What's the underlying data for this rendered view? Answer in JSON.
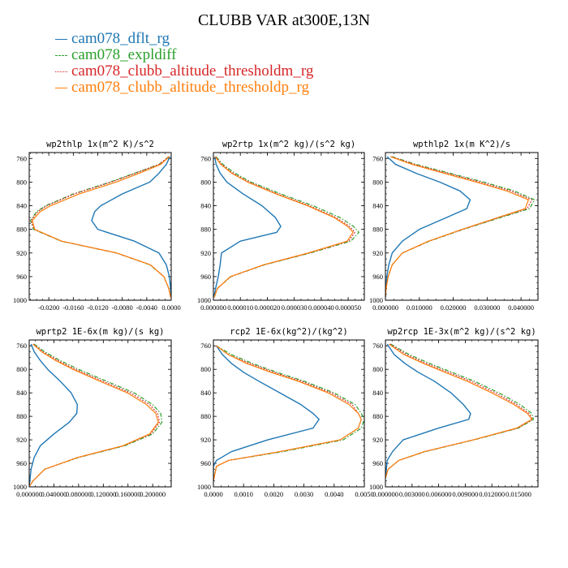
{
  "title": "CLUBB VAR at300E,13N",
  "legend": [
    {
      "label": "cam078_dflt_rg",
      "color": "#1f77b4",
      "dash": "solid"
    },
    {
      "label": "cam078_expldiff",
      "color": "#2ca02c",
      "dash": "dashdot"
    },
    {
      "label": "cam078_clubb_altitude_thresholdm_rg",
      "color": "#d62728",
      "dash": "dot"
    },
    {
      "label": "cam078_clubb_altitude_thresholdp_rg",
      "color": "#ff7f0e",
      "dash": "solid"
    }
  ],
  "chart_data": [
    {
      "type": "line",
      "title": "wp2thlp  1x(m^2 K)/s^2",
      "xlim": [
        -0.0232,
        0.0
      ],
      "ylim": [
        750,
        1000
      ],
      "xticks": [
        -0.02,
        -0.016,
        -0.012,
        -0.008,
        -0.004,
        0.0
      ],
      "xtick_labels": [
        "-0.0200",
        "-0.0160",
        "-0.0120",
        "-0.0080",
        "-0.0040",
        "0.0000"
      ],
      "yticks": [
        760,
        800,
        840,
        880,
        920,
        960,
        1000
      ],
      "ytick_labels": [
        "760",
        "800",
        "840",
        "880",
        "920",
        "960",
        "1000"
      ],
      "y": [
        757,
        770,
        785,
        800,
        820,
        840,
        850,
        865,
        880,
        900,
        920,
        940,
        960,
        980,
        995
      ],
      "series": [
        {
          "name": "cam078_dflt_rg",
          "values": [
            -0.0002,
            -0.0008,
            -0.002,
            -0.0035,
            -0.008,
            -0.0115,
            -0.0125,
            -0.013,
            -0.012,
            -0.006,
            -0.002,
            -0.0008,
            -0.0003,
            -0.0001,
            0.0
          ]
        },
        {
          "name": "cam078_expldiff",
          "values": [
            -0.0004,
            -0.002,
            -0.006,
            -0.01,
            -0.016,
            -0.0205,
            -0.022,
            -0.023,
            -0.0225,
            -0.018,
            -0.009,
            -0.0035,
            -0.0012,
            -0.0004,
            -0.0001
          ]
        },
        {
          "name": "cam078_clubb_altitude_thresholdm_rg",
          "values": [
            -0.0004,
            -0.002,
            -0.0058,
            -0.0098,
            -0.0158,
            -0.0203,
            -0.0218,
            -0.0229,
            -0.0224,
            -0.0179,
            -0.0089,
            -0.0034,
            -0.0012,
            -0.0004,
            -0.0001
          ]
        },
        {
          "name": "cam078_clubb_altitude_thresholdp_rg",
          "values": [
            -0.0003,
            -0.0017,
            -0.0052,
            -0.009,
            -0.015,
            -0.0197,
            -0.0214,
            -0.0227,
            -0.0223,
            -0.0179,
            -0.0089,
            -0.0034,
            -0.0012,
            -0.0004,
            -0.0001
          ]
        }
      ]
    },
    {
      "type": "line",
      "title": "wp2rtp  1x(m^2 kg)/(s^2 kg)",
      "xlim": [
        0.0,
        5.6e-05
      ],
      "ylim": [
        750,
        1000
      ],
      "xticks": [
        0.0,
        1e-05,
        2e-05,
        3e-05,
        4e-05,
        5e-05
      ],
      "xtick_labels": [
        "0.000000",
        "0.000010",
        "0.000020",
        "0.000030",
        "0.000040",
        "0.000050"
      ],
      "yticks": [
        760,
        800,
        840,
        880,
        920,
        960,
        1000
      ],
      "ytick_labels": [
        "760",
        "800",
        "840",
        "880",
        "920",
        "960",
        "1000"
      ],
      "y": [
        757,
        770,
        785,
        800,
        820,
        840,
        860,
        875,
        885,
        900,
        920,
        940,
        960,
        980,
        995
      ],
      "series": [
        {
          "name": "cam078_dflt_rg",
          "values": [
            5e-07,
            1e-06,
            2.5e-06,
            5e-06,
            1.1e-05,
            1.8e-05,
            2.3e-05,
            2.5e-05,
            2.35e-05,
            1e-05,
            3e-06,
            2.5e-06,
            1.8e-06,
            8e-07,
            2e-07
          ]
        },
        {
          "name": "cam078_expldiff",
          "values": [
            1e-06,
            3.5e-06,
            8e-06,
            1.4e-05,
            2.5e-05,
            3.7e-05,
            4.7e-05,
            5.2e-05,
            5.4e-05,
            5.1e-05,
            3.6e-05,
            1.9e-05,
            6.5e-06,
            1.5e-06,
            3e-07
          ]
        },
        {
          "name": "cam078_clubb_altitude_thresholdm_rg",
          "values": [
            8e-07,
            3e-06,
            7.2e-06,
            1.32e-05,
            2.38e-05,
            3.56e-05,
            4.55e-05,
            5.05e-05,
            5.25e-05,
            5.02e-05,
            3.55e-05,
            1.88e-05,
            6.4e-06,
            1.5e-06,
            3e-07
          ]
        },
        {
          "name": "cam078_clubb_altitude_thresholdp_rg",
          "values": [
            7e-07,
            2.7e-06,
            6.8e-06,
            1.27e-05,
            2.32e-05,
            3.49e-05,
            4.48e-05,
            4.98e-05,
            5.18e-05,
            4.96e-05,
            3.52e-05,
            1.86e-05,
            6.3e-06,
            1.5e-06,
            3e-07
          ]
        }
      ]
    },
    {
      "type": "line",
      "title": "wpthlp2  1x(m K^2)/s",
      "xlim": [
        0.0,
        0.045
      ],
      "ylim": [
        750,
        1000
      ],
      "xticks": [
        0.0,
        0.01,
        0.02,
        0.03,
        0.04
      ],
      "xtick_labels": [
        "0.000000",
        "0.010000",
        "0.020000",
        "0.030000",
        "0.040000"
      ],
      "yticks": [
        760,
        800,
        840,
        880,
        920,
        960,
        1000
      ],
      "ytick_labels": [
        "760",
        "800",
        "840",
        "880",
        "920",
        "960",
        "1000"
      ],
      "y": [
        757,
        770,
        785,
        800,
        815,
        830,
        845,
        860,
        880,
        900,
        920,
        940,
        960,
        980,
        995
      ],
      "series": [
        {
          "name": "cam078_dflt_rg",
          "values": [
            0.0005,
            0.003,
            0.009,
            0.016,
            0.022,
            0.025,
            0.024,
            0.018,
            0.01,
            0.005,
            0.002,
            0.001,
            0.0004,
            0.0001,
            0.0
          ]
        },
        {
          "name": "cam078_expldiff",
          "values": [
            0.002,
            0.009,
            0.019,
            0.029,
            0.038,
            0.044,
            0.0425,
            0.034,
            0.023,
            0.013,
            0.005,
            0.002,
            0.0008,
            0.0002,
            0.0
          ]
        },
        {
          "name": "cam078_clubb_altitude_thresholdm_rg",
          "values": [
            0.0018,
            0.0085,
            0.0182,
            0.028,
            0.037,
            0.0432,
            0.0418,
            0.0335,
            0.0228,
            0.0128,
            0.005,
            0.002,
            0.0008,
            0.0002,
            0.0
          ]
        },
        {
          "name": "cam078_clubb_altitude_thresholdp_rg",
          "values": [
            0.0015,
            0.0078,
            0.0172,
            0.0268,
            0.0358,
            0.0422,
            0.0412,
            0.0332,
            0.0226,
            0.0127,
            0.005,
            0.002,
            0.0008,
            0.0002,
            0.0
          ]
        }
      ]
    },
    {
      "type": "line",
      "title": "wprtp2  1E-6x(m kg)/(s kg)",
      "xlim": [
        0.0,
        0.23
      ],
      "ylim": [
        750,
        1000
      ],
      "xticks": [
        0.0,
        0.04,
        0.08,
        0.12,
        0.16,
        0.2
      ],
      "xtick_labels": [
        "0.000000",
        "0.040000",
        "0.080000",
        "0.120000",
        "0.160000",
        "0.200000"
      ],
      "yticks": [
        760,
        800,
        840,
        880,
        920,
        960,
        1000
      ],
      "ytick_labels": [
        "760",
        "800",
        "840",
        "880",
        "920",
        "960",
        "1000"
      ],
      "y": [
        757,
        770,
        785,
        800,
        820,
        840,
        860,
        875,
        890,
        910,
        930,
        950,
        970,
        990,
        998
      ],
      "series": [
        {
          "name": "cam078_dflt_rg",
          "values": [
            0.003,
            0.008,
            0.018,
            0.03,
            0.05,
            0.068,
            0.078,
            0.077,
            0.065,
            0.04,
            0.018,
            0.008,
            0.003,
            0.001,
            0.0
          ]
        },
        {
          "name": "cam078_expldiff",
          "values": [
            0.008,
            0.025,
            0.05,
            0.08,
            0.125,
            0.17,
            0.2,
            0.213,
            0.215,
            0.2,
            0.155,
            0.08,
            0.025,
            0.006,
            0.001
          ]
        },
        {
          "name": "cam078_clubb_altitude_thresholdm_rg",
          "values": [
            0.007,
            0.022,
            0.046,
            0.075,
            0.119,
            0.164,
            0.195,
            0.208,
            0.211,
            0.197,
            0.153,
            0.079,
            0.025,
            0.006,
            0.001
          ]
        },
        {
          "name": "cam078_clubb_altitude_thresholdp_rg",
          "values": [
            0.006,
            0.02,
            0.043,
            0.071,
            0.114,
            0.159,
            0.19,
            0.205,
            0.209,
            0.195,
            0.152,
            0.078,
            0.025,
            0.006,
            0.001
          ]
        }
      ]
    },
    {
      "type": "line",
      "title": "rcp2  1E-6x(kg^2)/(kg^2)",
      "xlim": [
        0.0,
        0.005
      ],
      "ylim": [
        750,
        1000
      ],
      "xticks": [
        0.0,
        0.001,
        0.002,
        0.003,
        0.004,
        0.005
      ],
      "xtick_labels": [
        "0.0000",
        "0.0010",
        "0.0020",
        "0.0030",
        "0.0040",
        "0.0050"
      ],
      "yticks": [
        760,
        800,
        840,
        880,
        920,
        960,
        1000
      ],
      "ytick_labels": [
        "760",
        "800",
        "840",
        "880",
        "920",
        "960",
        "1000"
      ],
      "y": [
        760,
        775,
        790,
        805,
        820,
        840,
        860,
        875,
        885,
        900,
        920,
        940,
        955,
        965,
        990
      ],
      "series": [
        {
          "name": "cam078_dflt_rg",
          "values": [
            0.0001,
            0.0003,
            0.0006,
            0.001,
            0.0015,
            0.0022,
            0.0029,
            0.0033,
            0.0035,
            0.0033,
            0.0018,
            0.0006,
            0.0001,
            0.0,
            0.0
          ]
        },
        {
          "name": "cam078_expldiff",
          "values": [
            0.0001,
            0.0006,
            0.0013,
            0.0021,
            0.003,
            0.004,
            0.0047,
            0.0049,
            0.005,
            0.0049,
            0.0043,
            0.0023,
            0.0005,
            0.0001,
            0.0
          ]
        },
        {
          "name": "cam078_clubb_altitude_thresholdm_rg",
          "values": [
            0.0001,
            0.0005,
            0.0012,
            0.002,
            0.0029,
            0.0039,
            0.0046,
            0.0048,
            0.0049,
            0.0048,
            0.0042,
            0.0022,
            0.0005,
            0.0001,
            0.0
          ]
        },
        {
          "name": "cam078_clubb_altitude_thresholdp_rg",
          "values": [
            0.0001,
            0.0005,
            0.0011,
            0.0019,
            0.0028,
            0.0038,
            0.0045,
            0.0048,
            0.0049,
            0.0048,
            0.0042,
            0.0022,
            0.0005,
            0.0001,
            0.0
          ]
        }
      ]
    },
    {
      "type": "line",
      "title": "wp2rcp  1E-3x(m^2 kg)/(s^2 kg)",
      "xlim": [
        0.0,
        0.0172
      ],
      "ylim": [
        750,
        1000
      ],
      "xticks": [
        0.0,
        0.003,
        0.006,
        0.009,
        0.012,
        0.015
      ],
      "xtick_labels": [
        "0.000000",
        "0.003000",
        "0.006000",
        "0.009000",
        "0.012000",
        "0.015000"
      ],
      "yticks": [
        760,
        800,
        840,
        880,
        920,
        960,
        1000
      ],
      "ytick_labels": [
        "760",
        "800",
        "840",
        "880",
        "920",
        "960",
        "1000"
      ],
      "y": [
        757,
        775,
        790,
        805,
        820,
        840,
        860,
        875,
        885,
        900,
        920,
        940,
        955,
        970,
        985
      ],
      "series": [
        {
          "name": "cam078_dflt_rg",
          "values": [
            0.0002,
            0.001,
            0.0022,
            0.0037,
            0.0055,
            0.0074,
            0.0088,
            0.0096,
            0.0094,
            0.006,
            0.002,
            0.0008,
            0.0002,
            0.0001,
            0.0
          ]
        },
        {
          "name": "cam078_expldiff",
          "values": [
            0.0006,
            0.0027,
            0.005,
            0.0075,
            0.01,
            0.0128,
            0.0152,
            0.0165,
            0.0167,
            0.015,
            0.01,
            0.0045,
            0.0015,
            0.0003,
            0.0
          ]
        },
        {
          "name": "cam078_clubb_altitude_thresholdm_rg",
          "values": [
            0.0005,
            0.0024,
            0.0046,
            0.0071,
            0.0096,
            0.0124,
            0.0148,
            0.0162,
            0.0166,
            0.0149,
            0.0099,
            0.0044,
            0.0015,
            0.0003,
            0.0
          ]
        },
        {
          "name": "cam078_clubb_altitude_thresholdp_rg",
          "values": [
            0.0004,
            0.0021,
            0.0043,
            0.0067,
            0.0092,
            0.012,
            0.0145,
            0.016,
            0.0165,
            0.0148,
            0.0099,
            0.0044,
            0.0015,
            0.0003,
            0.0
          ]
        }
      ]
    }
  ]
}
